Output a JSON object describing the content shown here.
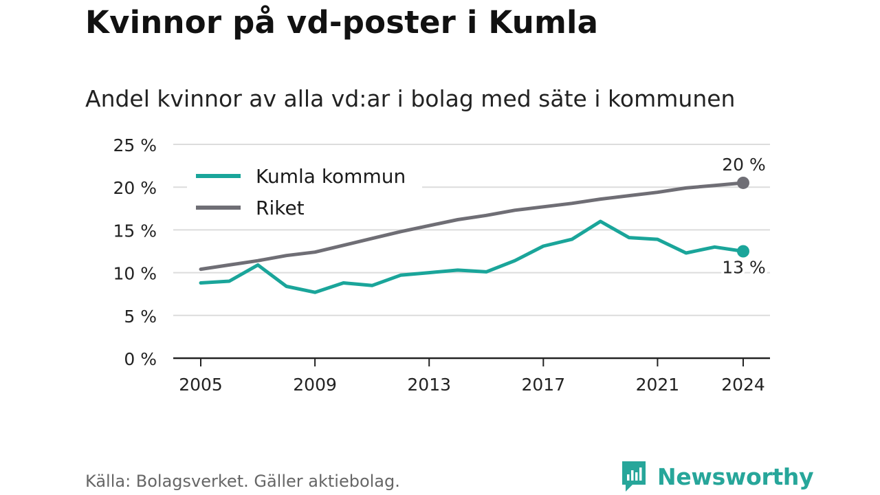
{
  "title": "Kvinnor på vd-poster i Kumla",
  "subtitle": "Andel kvinnor av alla vd:ar i bolag med säte i kommunen",
  "source": "Källa: Bolagsverket. Gäller aktiebolag.",
  "brand": {
    "name": "Newsworthy",
    "logo_icon": "bar-chart-speech-bubble-icon",
    "color": "#27a69a"
  },
  "chart_data": {
    "type": "line",
    "x_ticks": [
      2005,
      2009,
      2013,
      2017,
      2021,
      2024
    ],
    "xlim": [
      2004,
      2025
    ],
    "ylim": [
      0,
      25
    ],
    "y_ticks": [
      0,
      5,
      10,
      15,
      20,
      25
    ],
    "y_tick_labels": [
      "0 %",
      "5 %",
      "10 %",
      "15 %",
      "20 %",
      "25 %"
    ],
    "grid": true,
    "legend": "top-left",
    "x": [
      2005,
      2006,
      2007,
      2008,
      2009,
      2010,
      2011,
      2012,
      2013,
      2014,
      2015,
      2016,
      2017,
      2018,
      2019,
      2020,
      2021,
      2022,
      2023,
      2024
    ],
    "series": [
      {
        "name": "Kumla kommun",
        "color": "#1aa59a",
        "values": [
          8.8,
          9.0,
          10.9,
          8.4,
          7.7,
          8.8,
          8.5,
          9.7,
          10.0,
          10.3,
          10.1,
          11.4,
          13.1,
          13.9,
          16.0,
          14.1,
          13.9,
          12.3,
          13.0,
          12.5
        ],
        "end_label": "13 %"
      },
      {
        "name": "Riket",
        "color": "#6f6e75",
        "values": [
          10.4,
          10.9,
          11.4,
          12.0,
          12.4,
          13.2,
          14.0,
          14.8,
          15.5,
          16.2,
          16.7,
          17.3,
          17.7,
          18.1,
          18.6,
          19.0,
          19.4,
          19.9,
          20.2,
          20.5
        ],
        "end_label": "20 %"
      }
    ]
  }
}
